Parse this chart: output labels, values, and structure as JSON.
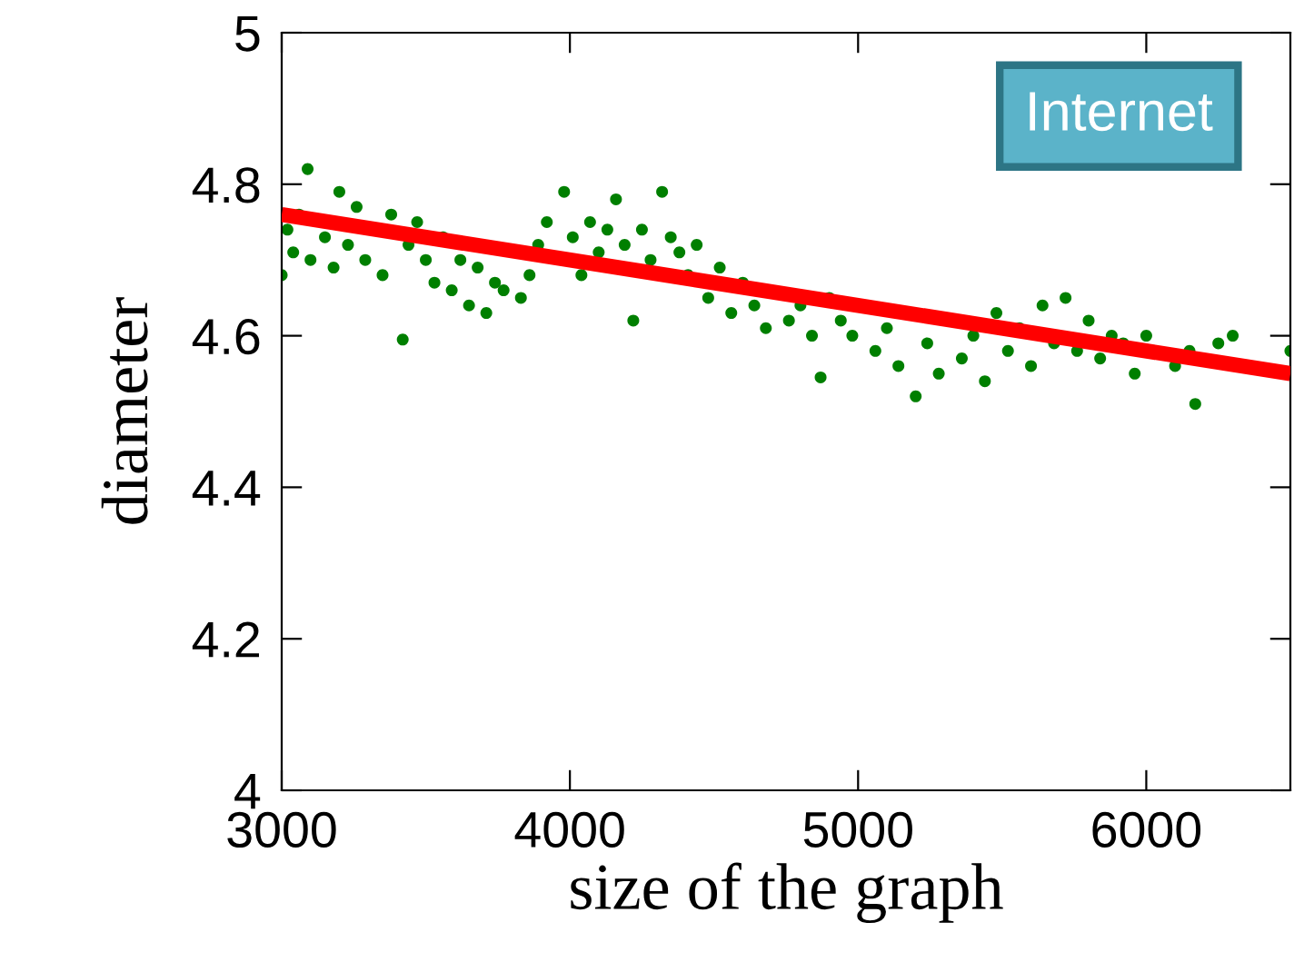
{
  "chart_data": {
    "type": "scatter",
    "xlabel": "size of the graph",
    "ylabel": "diameter",
    "annotations": [
      "Internet"
    ],
    "xlim": [
      3000,
      6500
    ],
    "xticks": [
      3000,
      4000,
      5000,
      6000
    ],
    "ylim": [
      4,
      5
    ],
    "yticks": [
      4,
      4.2,
      4.4,
      4.6,
      4.8,
      5
    ],
    "grid": false,
    "legend": false,
    "series": [
      {
        "color": "#007f00",
        "marker": "circle",
        "x": [
          3000,
          3020,
          3040,
          3060,
          3090,
          3100,
          3150,
          3180,
          3200,
          3230,
          3260,
          3290,
          3350,
          3380,
          3420,
          3440,
          3470,
          3500,
          3530,
          3560,
          3590,
          3620,
          3650,
          3680,
          3710,
          3740,
          3770,
          3830,
          3860,
          3890,
          3920,
          3980,
          4010,
          4040,
          4070,
          4100,
          4130,
          4160,
          4190,
          4220,
          4250,
          4280,
          4320,
          4350,
          4380,
          4410,
          4440,
          4480,
          4520,
          4560,
          4600,
          4640,
          4680,
          4760,
          4800,
          4840,
          4870,
          4900,
          4940,
          4980,
          5060,
          5100,
          5140,
          5200,
          5240,
          5280,
          5360,
          5400,
          5440,
          5480,
          5520,
          5560,
          5600,
          5640,
          5680,
          5720,
          5760,
          5800,
          5840,
          5880,
          5920,
          5960,
          6000,
          6100,
          6150,
          6170,
          6250,
          6300,
          6500
        ],
        "values": [
          4.68,
          4.74,
          4.71,
          4.76,
          4.82,
          4.7,
          4.73,
          4.69,
          4.79,
          4.72,
          4.77,
          4.7,
          4.68,
          4.76,
          4.595,
          4.72,
          4.75,
          4.7,
          4.67,
          4.73,
          4.66,
          4.7,
          4.64,
          4.69,
          4.63,
          4.67,
          4.66,
          4.65,
          4.68,
          4.72,
          4.75,
          4.79,
          4.73,
          4.68,
          4.75,
          4.71,
          4.74,
          4.78,
          4.72,
          4.62,
          4.74,
          4.7,
          4.79,
          4.73,
          4.71,
          4.68,
          4.72,
          4.65,
          4.69,
          4.63,
          4.67,
          4.64,
          4.61,
          4.62,
          4.64,
          4.6,
          4.545,
          4.65,
          4.62,
          4.6,
          4.58,
          4.61,
          4.56,
          4.52,
          4.59,
          4.55,
          4.57,
          4.6,
          4.54,
          4.63,
          4.58,
          4.61,
          4.56,
          4.64,
          4.59,
          4.65,
          4.58,
          4.62,
          4.57,
          4.6,
          4.59,
          4.55,
          4.6,
          4.56,
          4.58,
          4.51,
          4.59,
          4.6,
          4.58
        ]
      },
      {
        "type": "line",
        "color": "#ff0000",
        "x": [
          3000,
          6500
        ],
        "values": [
          4.76,
          4.55
        ],
        "marker": "none"
      }
    ]
  }
}
